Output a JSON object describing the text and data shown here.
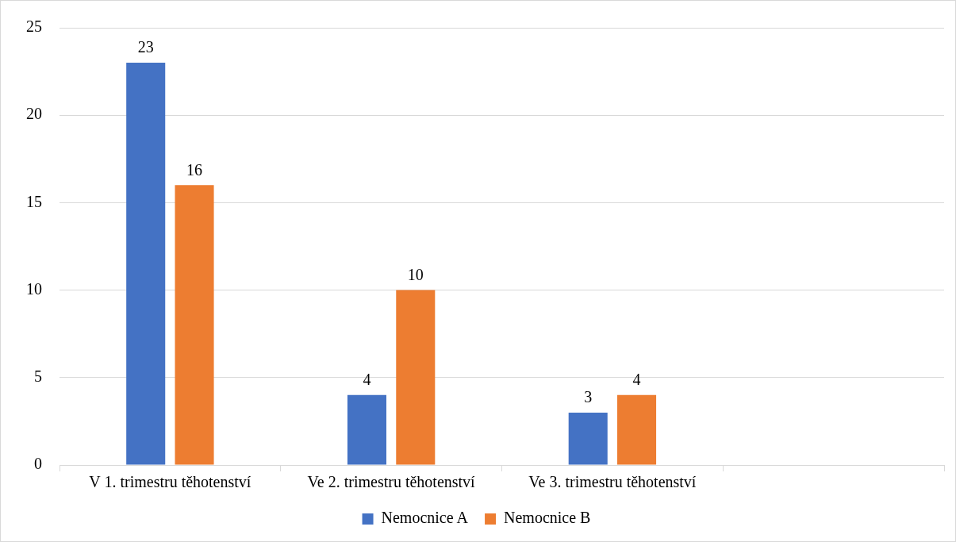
{
  "chart_data": {
    "type": "bar",
    "categories": [
      "V 1. trimestru těhotenství",
      "Ve 2. trimestru těhotenství",
      "Ve 3. trimestru těhotenství",
      null
    ],
    "series": [
      {
        "name": "Nemocnice A",
        "color": "#4472c4",
        "values": [
          23,
          4,
          3,
          null
        ]
      },
      {
        "name": "Nemocnice B",
        "color": "#ed7d31",
        "values": [
          16,
          10,
          4,
          null
        ]
      }
    ],
    "ylim": [
      0,
      25
    ],
    "yticks": [
      0,
      5,
      10,
      15,
      20,
      25
    ],
    "grid": "y",
    "legend": "bottom",
    "data_labels": true
  }
}
